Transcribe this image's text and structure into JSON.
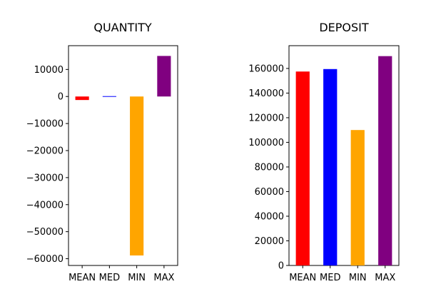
{
  "chart_data": [
    {
      "type": "bar",
      "title": "QUANTITY",
      "xlabel": "",
      "ylabel": "",
      "categories": [
        "MEAN",
        "MED",
        "MIN",
        "MAX"
      ],
      "values": [
        -1300,
        -250,
        -58800,
        15000
      ],
      "colors": [
        "#ff0000",
        "#0000ff",
        "#ffa500",
        "#800080"
      ],
      "ylim": [
        -62500,
        18800
      ],
      "yticks": [
        10000,
        0,
        -10000,
        -20000,
        -30000,
        -40000,
        -50000,
        -60000
      ],
      "ytick_labels": [
        "10000",
        "0",
        "−10000",
        "−20000",
        "−30000",
        "−40000",
        "−50000",
        "−60000"
      ],
      "grid": false
    },
    {
      "type": "bar",
      "title": "DEPOSIT",
      "xlabel": "",
      "ylabel": "",
      "categories": [
        "MEAN",
        "MED",
        "MIN",
        "MAX"
      ],
      "values": [
        157500,
        159500,
        110000,
        170000
      ],
      "colors": [
        "#ff0000",
        "#0000ff",
        "#ffa500",
        "#800080"
      ],
      "ylim": [
        0,
        178500
      ],
      "yticks": [
        0,
        20000,
        40000,
        60000,
        80000,
        100000,
        120000,
        140000,
        160000
      ],
      "ytick_labels": [
        "0",
        "20000",
        "40000",
        "60000",
        "80000",
        "100000",
        "120000",
        "140000",
        "160000"
      ],
      "grid": false
    }
  ]
}
